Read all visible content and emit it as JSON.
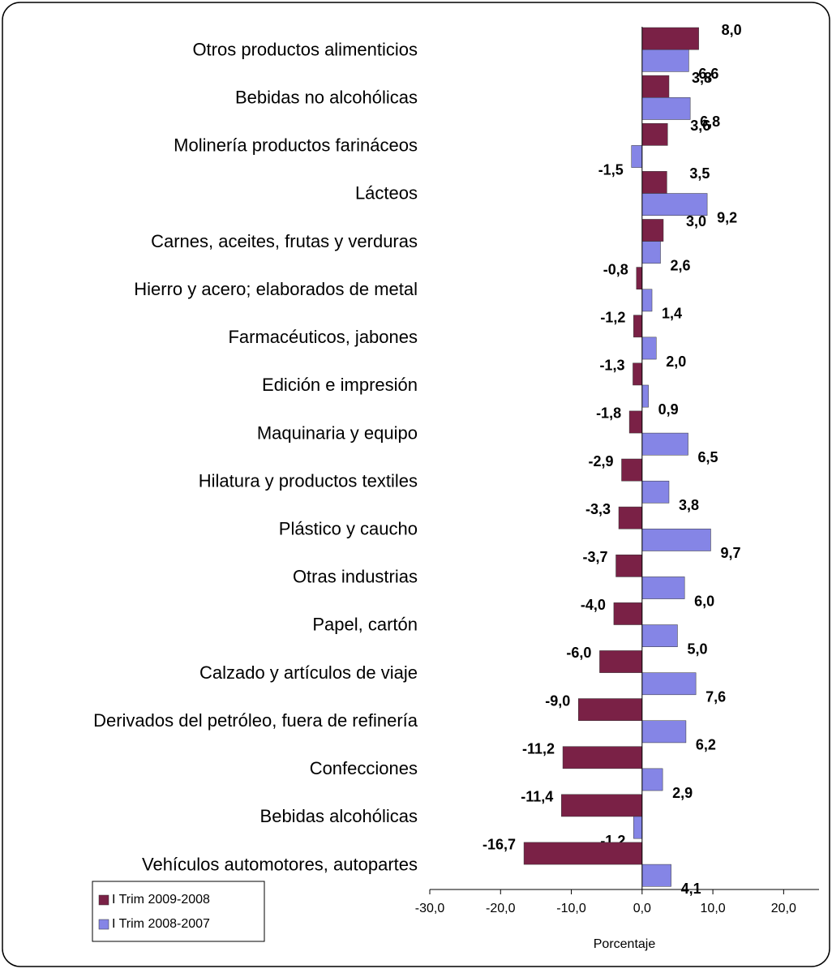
{
  "chart_data": {
    "type": "hbar",
    "xlabel": "Porcentaje",
    "categories": [
      "Otros productos alimenticios",
      "Bebidas no alcohólicas",
      "Molinería productos farináceos",
      "Lácteos",
      "Carnes, aceites, frutas y verduras",
      "Hierro y acero; elaborados de metal",
      "Farmacéuticos, jabones",
      "Edición e impresión",
      "Maquinaria y equipo",
      "Hilatura y productos textiles",
      "Plástico y caucho",
      "Otras industrias",
      "Papel, cartón",
      "Calzado y artículos de viaje",
      "Derivados del petróleo, fuera de refinería",
      "Confecciones",
      "Bebidas alcohólicas",
      "Vehículos automotores, autopartes"
    ],
    "series": [
      {
        "name": "I Trim 2009-2008",
        "color": "#7a2146",
        "values": [
          8.0,
          3.8,
          3.6,
          3.5,
          3.0,
          -0.8,
          -1.2,
          -1.3,
          -1.8,
          -2.9,
          -3.3,
          -3.7,
          -4.0,
          -6.0,
          -9.0,
          -11.2,
          -11.4,
          -16.7
        ],
        "value_labels": [
          "8,0",
          "3,8",
          "3,6",
          "3,5",
          "3,0",
          "-0,8",
          "-1,2",
          "-1,3",
          "-1,8",
          "-2,9",
          "-3,3",
          "-3,7",
          "-4,0",
          "-6,0",
          "-9,0",
          "-11,2",
          "-11,4",
          "-16,7"
        ]
      },
      {
        "name": "I Trim 2008-2007",
        "color": "#8585e6",
        "values": [
          6.6,
          6.8,
          -1.5,
          9.2,
          2.6,
          1.4,
          2.0,
          0.9,
          6.5,
          3.8,
          9.7,
          6.0,
          5.0,
          7.6,
          6.2,
          2.9,
          -1.2,
          4.1
        ],
        "value_labels": [
          "6,6",
          "6,8",
          "-1,5",
          "9,2",
          "2,6",
          "1,4",
          "2,0",
          "0,9",
          "6,5",
          "3,8",
          "9,7",
          "6,0",
          "5,0",
          "7,6",
          "6,2",
          "2,9",
          "-1,2",
          "4,1"
        ]
      }
    ],
    "xlim": [
      -30,
      25
    ],
    "xticks": [
      {
        "value": -30,
        "label": "-30,0"
      },
      {
        "value": -20,
        "label": "-20,0"
      },
      {
        "value": -10,
        "label": "-10,0"
      },
      {
        "value": 0,
        "label": "0,0"
      },
      {
        "value": 10,
        "label": "10,0"
      },
      {
        "value": 20,
        "label": "20,0"
      }
    ],
    "legend": "bottom-left"
  }
}
